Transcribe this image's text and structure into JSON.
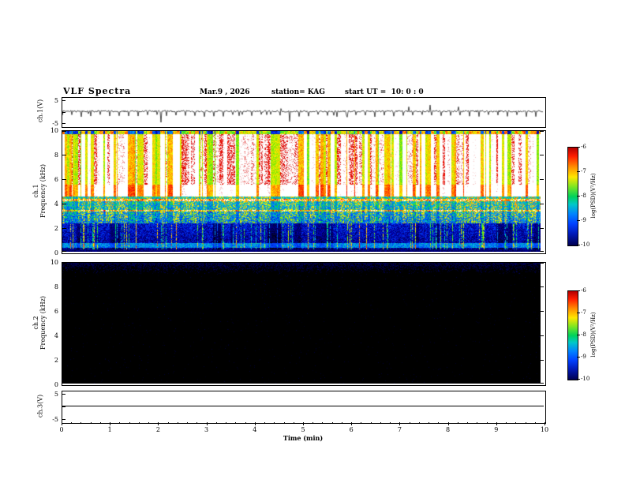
{
  "header": {
    "title": "VLF Spectra",
    "date": "Mar.9 , 2026",
    "station": "station= KAG",
    "start_ut": "start UT =  10: 0 : 0"
  },
  "axes": {
    "xlabel": "Time (min)",
    "xtick_labels": [
      "0",
      "1",
      "2",
      "3",
      "4",
      "5",
      "6",
      "7",
      "8",
      "9",
      "10"
    ],
    "xlim": [
      0,
      10
    ]
  },
  "panels": {
    "ch1_wave": {
      "ylabel": "ch.1(V)",
      "ytick_labels": [
        "5",
        "-5"
      ],
      "ylim": [
        -5,
        5
      ]
    },
    "ch1_spec": {
      "ylabel_line1": "ch.1",
      "ylabel_line2": "Frequency (kHz)",
      "ytick_labels": [
        "10",
        "8",
        "6",
        "4",
        "2",
        "0"
      ],
      "ylim": [
        0,
        10
      ]
    },
    "ch2_spec": {
      "ylabel_line1": "ch.2",
      "ylabel_line2": "Frequency (kHz)",
      "ytick_labels": [
        "10",
        "8",
        "6",
        "4",
        "2",
        "0"
      ],
      "ylim": [
        0,
        10
      ]
    },
    "ch3_wave": {
      "ylabel": "ch.3(V)",
      "ytick_labels": [
        "5",
        "-5"
      ],
      "ylim": [
        -5,
        5
      ]
    }
  },
  "colorbars": [
    {
      "label": "log(PSD)(V²/Hz)",
      "tick_labels": [
        "-6",
        "-7",
        "-8",
        "-9",
        "-10"
      ],
      "value_range": [
        -10,
        -6
      ]
    },
    {
      "label": "log(PSD)(V²/Hz)",
      "tick_labels": [
        "-6",
        "-7",
        "-8",
        "-9",
        "-10"
      ],
      "value_range": [
        -10,
        -6
      ]
    }
  ],
  "chart_data": [
    {
      "type": "line",
      "name": "ch1_voltage_waveform",
      "xlabel": "Time (min)",
      "ylabel": "ch.1(V)",
      "xlim": [
        0,
        10
      ],
      "ylim": [
        -5,
        5
      ],
      "description": "Noisy trace fluctuating around 0 V (about ±0.5 V) with a dense comb of small downward ticks and sporadic spikes reaching about ±3 V, notably near 2.1 min and 4.7 min."
    },
    {
      "type": "heatmap",
      "name": "ch1_spectrogram",
      "xlabel": "Time (min)",
      "ylabel": "ch.1 Frequency (kHz)",
      "xlim": [
        0,
        10
      ],
      "ylim": [
        0,
        10
      ],
      "colormap": "jet",
      "value_label": "log(PSD)(V²/Hz)",
      "value_range": [
        -10,
        -6
      ],
      "bands": [
        {
          "freq_khz": [
            4.6,
            10
          ],
          "psd": "about -6 (saturated)",
          "appearance": "dense white vertical bursts with red/yellow fringes over a yellow-green background for the whole 10 min; reddish band near 5 kHz"
        },
        {
          "freq_khz": [
            2.5,
            4.6
          ],
          "psd": "about -8",
          "appearance": "green/cyan speckle with intermittent red horizontal lines near 3.5 and 4.3 kHz and vertical green streaks under the bursts"
        },
        {
          "freq_khz": [
            0,
            2.5
          ],
          "psd": "about -9 to -10",
          "appearance": "blue to near-black with sparse cyan vertical streaks, dark patches, and a brighter blue band near 0.5 kHz"
        }
      ]
    },
    {
      "type": "heatmap",
      "name": "ch2_spectrogram",
      "xlabel": "Time (min)",
      "ylabel": "ch.2 Frequency (kHz)",
      "xlim": [
        0,
        10
      ],
      "ylim": [
        0,
        10
      ],
      "colormap": "jet",
      "value_label": "log(PSD)(V²/Hz)",
      "value_range": [
        -10,
        -6
      ],
      "bands": [
        {
          "freq_khz": [
            0,
            10
          ],
          "psd": "at or below -10",
          "appearance": "almost uniformly black with very faint dark-blue speckle, slightly denser near 9-10 kHz"
        }
      ]
    },
    {
      "type": "line",
      "name": "ch3_voltage_waveform",
      "xlabel": "Time (min)",
      "ylabel": "ch.3(V)",
      "xlim": [
        0,
        10
      ],
      "ylim": [
        -5,
        5
      ],
      "description": "Flat line at 0 V for the full 10 minutes."
    }
  ]
}
